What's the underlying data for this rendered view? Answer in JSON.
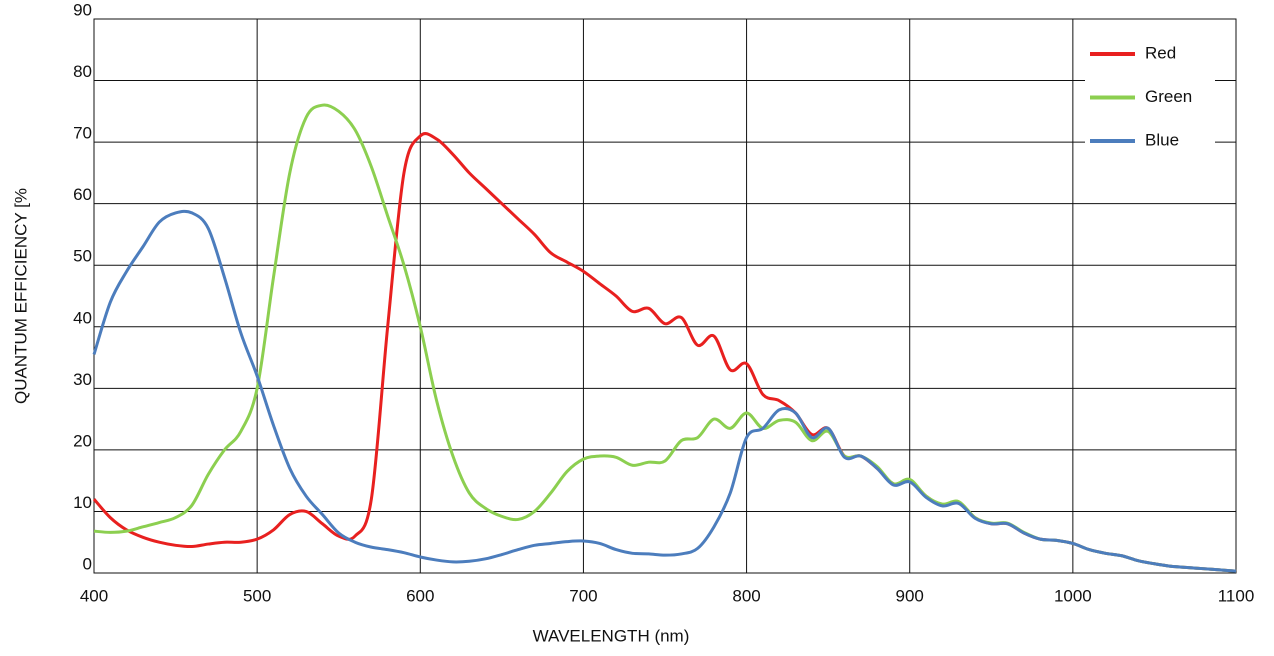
{
  "chart_data": {
    "type": "line",
    "xlabel": "WAVELENGTH (nm)",
    "ylabel": "QUANTUM EFFICIENCY [%",
    "x": [
      400,
      410,
      420,
      430,
      440,
      450,
      460,
      470,
      480,
      490,
      500,
      510,
      520,
      530,
      540,
      550,
      560,
      570,
      580,
      590,
      600,
      610,
      620,
      630,
      640,
      650,
      660,
      670,
      680,
      690,
      700,
      710,
      720,
      730,
      740,
      750,
      760,
      770,
      780,
      790,
      800,
      810,
      820,
      830,
      840,
      850,
      860,
      870,
      880,
      890,
      900,
      910,
      920,
      930,
      940,
      950,
      960,
      970,
      980,
      990,
      1000,
      1010,
      1020,
      1030,
      1040,
      1050,
      1060,
      1070,
      1080,
      1090,
      1100
    ],
    "series": [
      {
        "name": "Red",
        "color": "#e8201f",
        "values": [
          12,
          9,
          7,
          5.8,
          5,
          4.5,
          4.3,
          4.7,
          5,
          5,
          5.5,
          7,
          9.5,
          10,
          8,
          6,
          6,
          12,
          40,
          65,
          71,
          70.5,
          68,
          65,
          62.5,
          60,
          57.5,
          55,
          52,
          50.5,
          49,
          47,
          45,
          42.5,
          43,
          40.5,
          41.5,
          37,
          38.5,
          33,
          34,
          29,
          28,
          26,
          22.5,
          23.5,
          19,
          19,
          17,
          14.5,
          15,
          12.5,
          11,
          11.5,
          9,
          8,
          8,
          6.5,
          5.5,
          5.3,
          4.8,
          3.8,
          3.2,
          2.8,
          2,
          1.5,
          1.1,
          0.9,
          0.7,
          0.5,
          0.3
        ]
      },
      {
        "name": "Green",
        "color": "#8ccf50",
        "values": [
          6.8,
          6.6,
          6.8,
          7.5,
          8.2,
          9,
          11,
          16,
          20,
          23,
          30,
          48,
          65,
          74,
          76,
          75,
          72,
          66,
          58,
          50,
          40,
          28,
          19,
          13,
          10.5,
          9.2,
          8.7,
          10,
          13,
          16.5,
          18.5,
          19,
          18.8,
          17.5,
          18,
          18.2,
          21.5,
          22,
          25,
          23.5,
          26,
          23.5,
          24.8,
          24.5,
          21.5,
          23,
          19,
          19,
          17.3,
          14.5,
          15.2,
          12.5,
          11.2,
          11.6,
          9,
          8.1,
          8.1,
          6.6,
          5.5,
          5.3,
          4.8,
          3.8,
          3.2,
          2.8,
          2,
          1.5,
          1.1,
          0.9,
          0.7,
          0.5,
          0.3
        ]
      },
      {
        "name": "Blue",
        "color": "#4c7dbd",
        "values": [
          35.5,
          44,
          49,
          53,
          57,
          58.5,
          58.5,
          56,
          48,
          39,
          32,
          24,
          17,
          12.5,
          9.5,
          6.5,
          5,
          4.2,
          3.8,
          3.3,
          2.6,
          2.1,
          1.8,
          1.9,
          2.3,
          3,
          3.8,
          4.5,
          4.8,
          5.1,
          5.2,
          4.8,
          3.8,
          3.2,
          3.1,
          2.9,
          3.1,
          4,
          7.5,
          13,
          22,
          23.5,
          26.5,
          26,
          22,
          23.5,
          18.8,
          19,
          17,
          14.3,
          14.8,
          12.3,
          10.9,
          11.3,
          8.9,
          8,
          8,
          6.5,
          5.5,
          5.3,
          4.8,
          3.8,
          3.2,
          2.8,
          2,
          1.5,
          1.1,
          0.9,
          0.7,
          0.5,
          0.3
        ]
      }
    ],
    "xlim": [
      400,
      1100
    ],
    "xticks": [
      400,
      500,
      600,
      700,
      800,
      900,
      1000,
      1100
    ],
    "ylim": [
      0,
      90
    ],
    "yticks": [
      0,
      10,
      20,
      30,
      40,
      50,
      60,
      70,
      80,
      90
    ],
    "grid": true,
    "legend": "upper right"
  }
}
